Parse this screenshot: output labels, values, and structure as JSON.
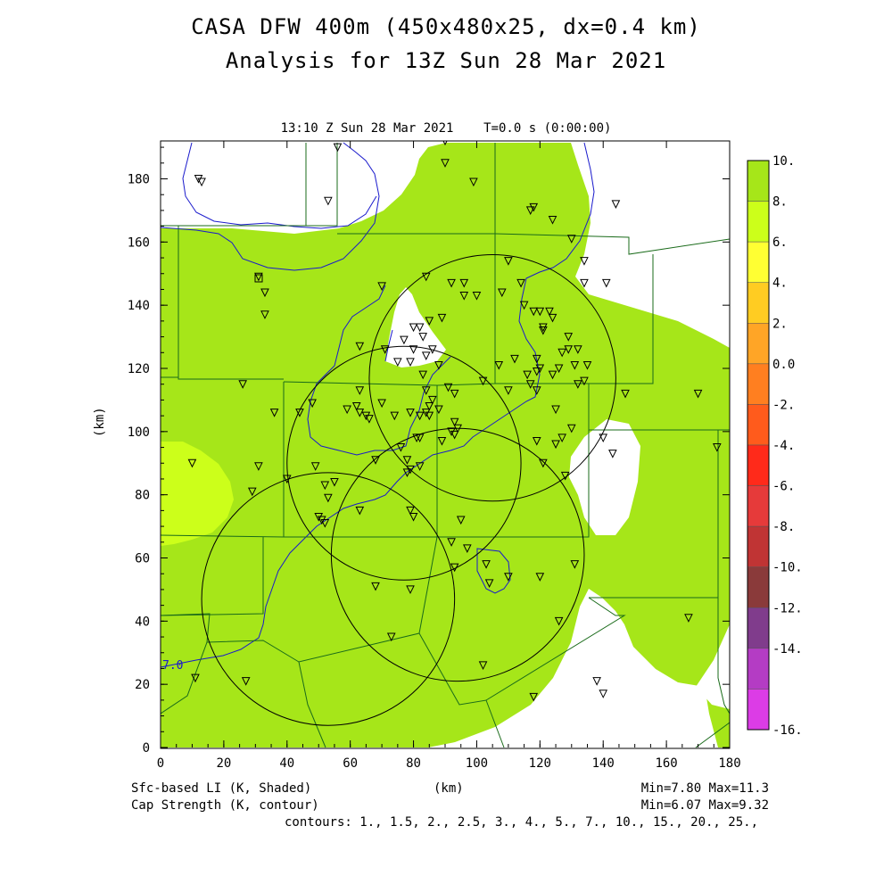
{
  "header": {
    "title_line1": "CASA DFW 400m (450x480x25, dx=0.4 km)",
    "title_line2": "Analysis for 13Z Sun 28 Mar 2021",
    "plot_subtitle": "13:10 Z Sun 28 Mar 2021    T=0.0 s (0:00:00)"
  },
  "axes": {
    "x_label": "(km)",
    "y_label": "(km)",
    "x_range": [
      0,
      180
    ],
    "y_range": [
      0,
      192
    ],
    "x_ticks": [
      "0",
      "20",
      "40",
      "60",
      "80",
      "100",
      "120",
      "140",
      "160",
      "180"
    ],
    "y_ticks": [
      "0",
      "20",
      "40",
      "60",
      "80",
      "100",
      "120",
      "140",
      "160",
      "180"
    ]
  },
  "colorbar": {
    "labels": [
      "10.",
      "8.",
      "6.",
      "4.",
      "2.",
      "0.0",
      "-2.",
      "-4.",
      "-6.",
      "-8.",
      "-10.",
      "-12.",
      "-14.",
      "-16."
    ],
    "colors": [
      "#a6e619",
      "#ccff1a",
      "#ffff33",
      "#ffcc22",
      "#ffa526",
      "#ff7f20",
      "#ff5b1c",
      "#ff2a1a",
      "#e63a3a",
      "#c03434",
      "#8a3a3a",
      "#803c8c",
      "#b43cc4",
      "#dc3ce6"
    ]
  },
  "footer": {
    "shaded_label": "Sfc-based LI (K, Shaded)",
    "contour_label": "Cap Strength (K, contour)",
    "x_unit": "(km)",
    "shaded_stats": "Min=7.80 Max=11.3",
    "contour_stats": "Min=6.07 Max=9.32",
    "contour_levels": "contours: 1., 1.5, 2., 2.5, 3., 4., 5., 7., 10., 15., 20., 25.,"
  },
  "map": {
    "contour_annotation": "7.0",
    "radar_rings": [
      {
        "cx": 105,
        "cy": 117,
        "r": 39
      },
      {
        "cx": 77,
        "cy": 90,
        "r": 37
      },
      {
        "cx": 94,
        "cy": 61,
        "r": 40
      },
      {
        "cx": 53,
        "cy": 47,
        "r": 40
      }
    ],
    "stations": [
      [
        12,
        180
      ],
      [
        13,
        179
      ],
      [
        56,
        190
      ],
      [
        53,
        173
      ],
      [
        90,
        192
      ],
      [
        90,
        185
      ],
      [
        99,
        179
      ],
      [
        118,
        171
      ],
      [
        117,
        170
      ],
      [
        124,
        167
      ],
      [
        130,
        161
      ],
      [
        134,
        154
      ],
      [
        144,
        172
      ],
      [
        134,
        147
      ],
      [
        141,
        147
      ],
      [
        31,
        149
      ],
      [
        33,
        144
      ],
      [
        33,
        137
      ],
      [
        70,
        146
      ],
      [
        84,
        149
      ],
      [
        92,
        147
      ],
      [
        96,
        143
      ],
      [
        96,
        147
      ],
      [
        100,
        143
      ],
      [
        110,
        154
      ],
      [
        108,
        144
      ],
      [
        114,
        147
      ],
      [
        115,
        140
      ],
      [
        118,
        138
      ],
      [
        120,
        138
      ],
      [
        121,
        133
      ],
      [
        123,
        138
      ],
      [
        121,
        132
      ],
      [
        124,
        136
      ],
      [
        129,
        130
      ],
      [
        129,
        126
      ],
      [
        127,
        125
      ],
      [
        126,
        120
      ],
      [
        131,
        121
      ],
      [
        132,
        126
      ],
      [
        135,
        121
      ],
      [
        132,
        115
      ],
      [
        134,
        116
      ],
      [
        147,
        112
      ],
      [
        170,
        112
      ],
      [
        176,
        95
      ],
      [
        26,
        115
      ],
      [
        36,
        106
      ],
      [
        48,
        109
      ],
      [
        63,
        113
      ],
      [
        59,
        107
      ],
      [
        62,
        108
      ],
      [
        63,
        106
      ],
      [
        65,
        105
      ],
      [
        66,
        104
      ],
      [
        70,
        109
      ],
      [
        74,
        105
      ],
      [
        71,
        126
      ],
      [
        63,
        127
      ],
      [
        75,
        122
      ],
      [
        77,
        129
      ],
      [
        80,
        133
      ],
      [
        82,
        133
      ],
      [
        85,
        135
      ],
      [
        89,
        136
      ],
      [
        83,
        130
      ],
      [
        84,
        124
      ],
      [
        79,
        122
      ],
      [
        80,
        126
      ],
      [
        86,
        126
      ],
      [
        88,
        121
      ],
      [
        83,
        118
      ],
      [
        84,
        113
      ],
      [
        86,
        110
      ],
      [
        85,
        105
      ],
      [
        91,
        114
      ],
      [
        93,
        112
      ],
      [
        79,
        106
      ],
      [
        82,
        105
      ],
      [
        84,
        106
      ],
      [
        85,
        108
      ],
      [
        88,
        107
      ],
      [
        81,
        98
      ],
      [
        82,
        98
      ],
      [
        89,
        97
      ],
      [
        93,
        99
      ],
      [
        93,
        103
      ],
      [
        94,
        101
      ],
      [
        92,
        100
      ],
      [
        102,
        116
      ],
      [
        107,
        121
      ],
      [
        112,
        123
      ],
      [
        119,
        123
      ],
      [
        119,
        119
      ],
      [
        120,
        120
      ],
      [
        116,
        118
      ],
      [
        117,
        115
      ],
      [
        124,
        118
      ],
      [
        119,
        113
      ],
      [
        125,
        107
      ],
      [
        130,
        101
      ],
      [
        127,
        98
      ],
      [
        125,
        96
      ],
      [
        119,
        97
      ],
      [
        121,
        90
      ],
      [
        110,
        113
      ],
      [
        140,
        98
      ],
      [
        143,
        93
      ],
      [
        128,
        86
      ],
      [
        10,
        90
      ],
      [
        11,
        22
      ],
      [
        27,
        21
      ],
      [
        29,
        81
      ],
      [
        31,
        89
      ],
      [
        40,
        85
      ],
      [
        44,
        106
      ],
      [
        49,
        89
      ],
      [
        52,
        83
      ],
      [
        53,
        79
      ],
      [
        55,
        84
      ],
      [
        50,
        73
      ],
      [
        51,
        72
      ],
      [
        52,
        71
      ],
      [
        63,
        75
      ],
      [
        68,
        91
      ],
      [
        76,
        95
      ],
      [
        78,
        91
      ],
      [
        78,
        87
      ],
      [
        79,
        88
      ],
      [
        82,
        89
      ],
      [
        79,
        75
      ],
      [
        80,
        73
      ],
      [
        95,
        72
      ],
      [
        97,
        63
      ],
      [
        93,
        57
      ],
      [
        92,
        65
      ],
      [
        103,
        58
      ],
      [
        104,
        52
      ],
      [
        110,
        54
      ],
      [
        120,
        54
      ],
      [
        131,
        58
      ],
      [
        126,
        40
      ],
      [
        68,
        51
      ],
      [
        79,
        50
      ],
      [
        73,
        35
      ],
      [
        102,
        26
      ],
      [
        118,
        16
      ],
      [
        138,
        21
      ],
      [
        140,
        17
      ],
      [
        167,
        41
      ]
    ]
  }
}
